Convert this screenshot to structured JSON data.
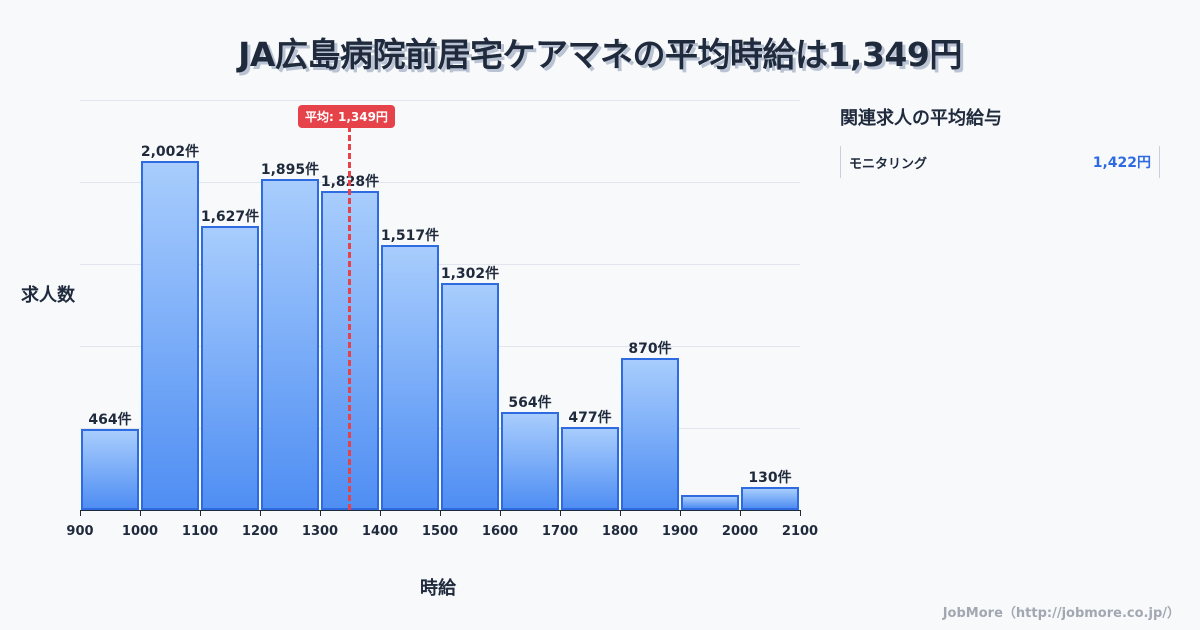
{
  "title": "JA広島病院前居宅ケアマネの平均時給は1,349円",
  "mean_badge": "平均: 1,349円",
  "ylabel": "求人数",
  "xlabel": "時給",
  "side_panel": {
    "title": "関連求人の平均給与",
    "items": [
      {
        "name": "モニタリング",
        "value": "1,422円"
      }
    ]
  },
  "footer": "JobMore（http://jobmore.co.jp/）",
  "colors": {
    "bar_fill_top": "#a8cdfd",
    "bar_fill_bottom": "#4f8ef3",
    "bar_border": "#2e6ae0",
    "mean_line": "#e5424a",
    "text": "#1f2a3c"
  },
  "chart_data": {
    "type": "bar",
    "title": "JA広島病院前居宅ケアマネの平均時給は1,349円",
    "xlabel": "時給",
    "ylabel": "求人数",
    "bins": [
      [
        900,
        1000
      ],
      [
        1000,
        1100
      ],
      [
        1100,
        1200
      ],
      [
        1200,
        1300
      ],
      [
        1300,
        1400
      ],
      [
        1400,
        1500
      ],
      [
        1500,
        1600
      ],
      [
        1600,
        1700
      ],
      [
        1700,
        1800
      ],
      [
        1800,
        1900
      ],
      [
        1900,
        2000
      ],
      [
        2000,
        2100
      ]
    ],
    "categories": [
      "900-1000",
      "1000-1100",
      "1100-1200",
      "1200-1300",
      "1300-1400",
      "1400-1500",
      "1500-1600",
      "1600-1700",
      "1700-1800",
      "1800-1900",
      "1900-2000",
      "2000-2100"
    ],
    "values": [
      464,
      2002,
      1627,
      1895,
      1828,
      1517,
      1302,
      564,
      477,
      870,
      86,
      130
    ],
    "labels": [
      "464件",
      "2,002件",
      "1,627件",
      "1,895件",
      "1,828件",
      "1,517件",
      "1,302件",
      "564件",
      "477件",
      "870件",
      "",
      "130件"
    ],
    "x_ticks": [
      "900",
      "1000",
      "1100",
      "1200",
      "1300",
      "1400",
      "1500",
      "1600",
      "1700",
      "1800",
      "1900",
      "2000",
      "2100"
    ],
    "mean": 1349,
    "mean_label": "平均: 1,349円",
    "ylim": [
      0,
      2350
    ],
    "grid": true
  }
}
